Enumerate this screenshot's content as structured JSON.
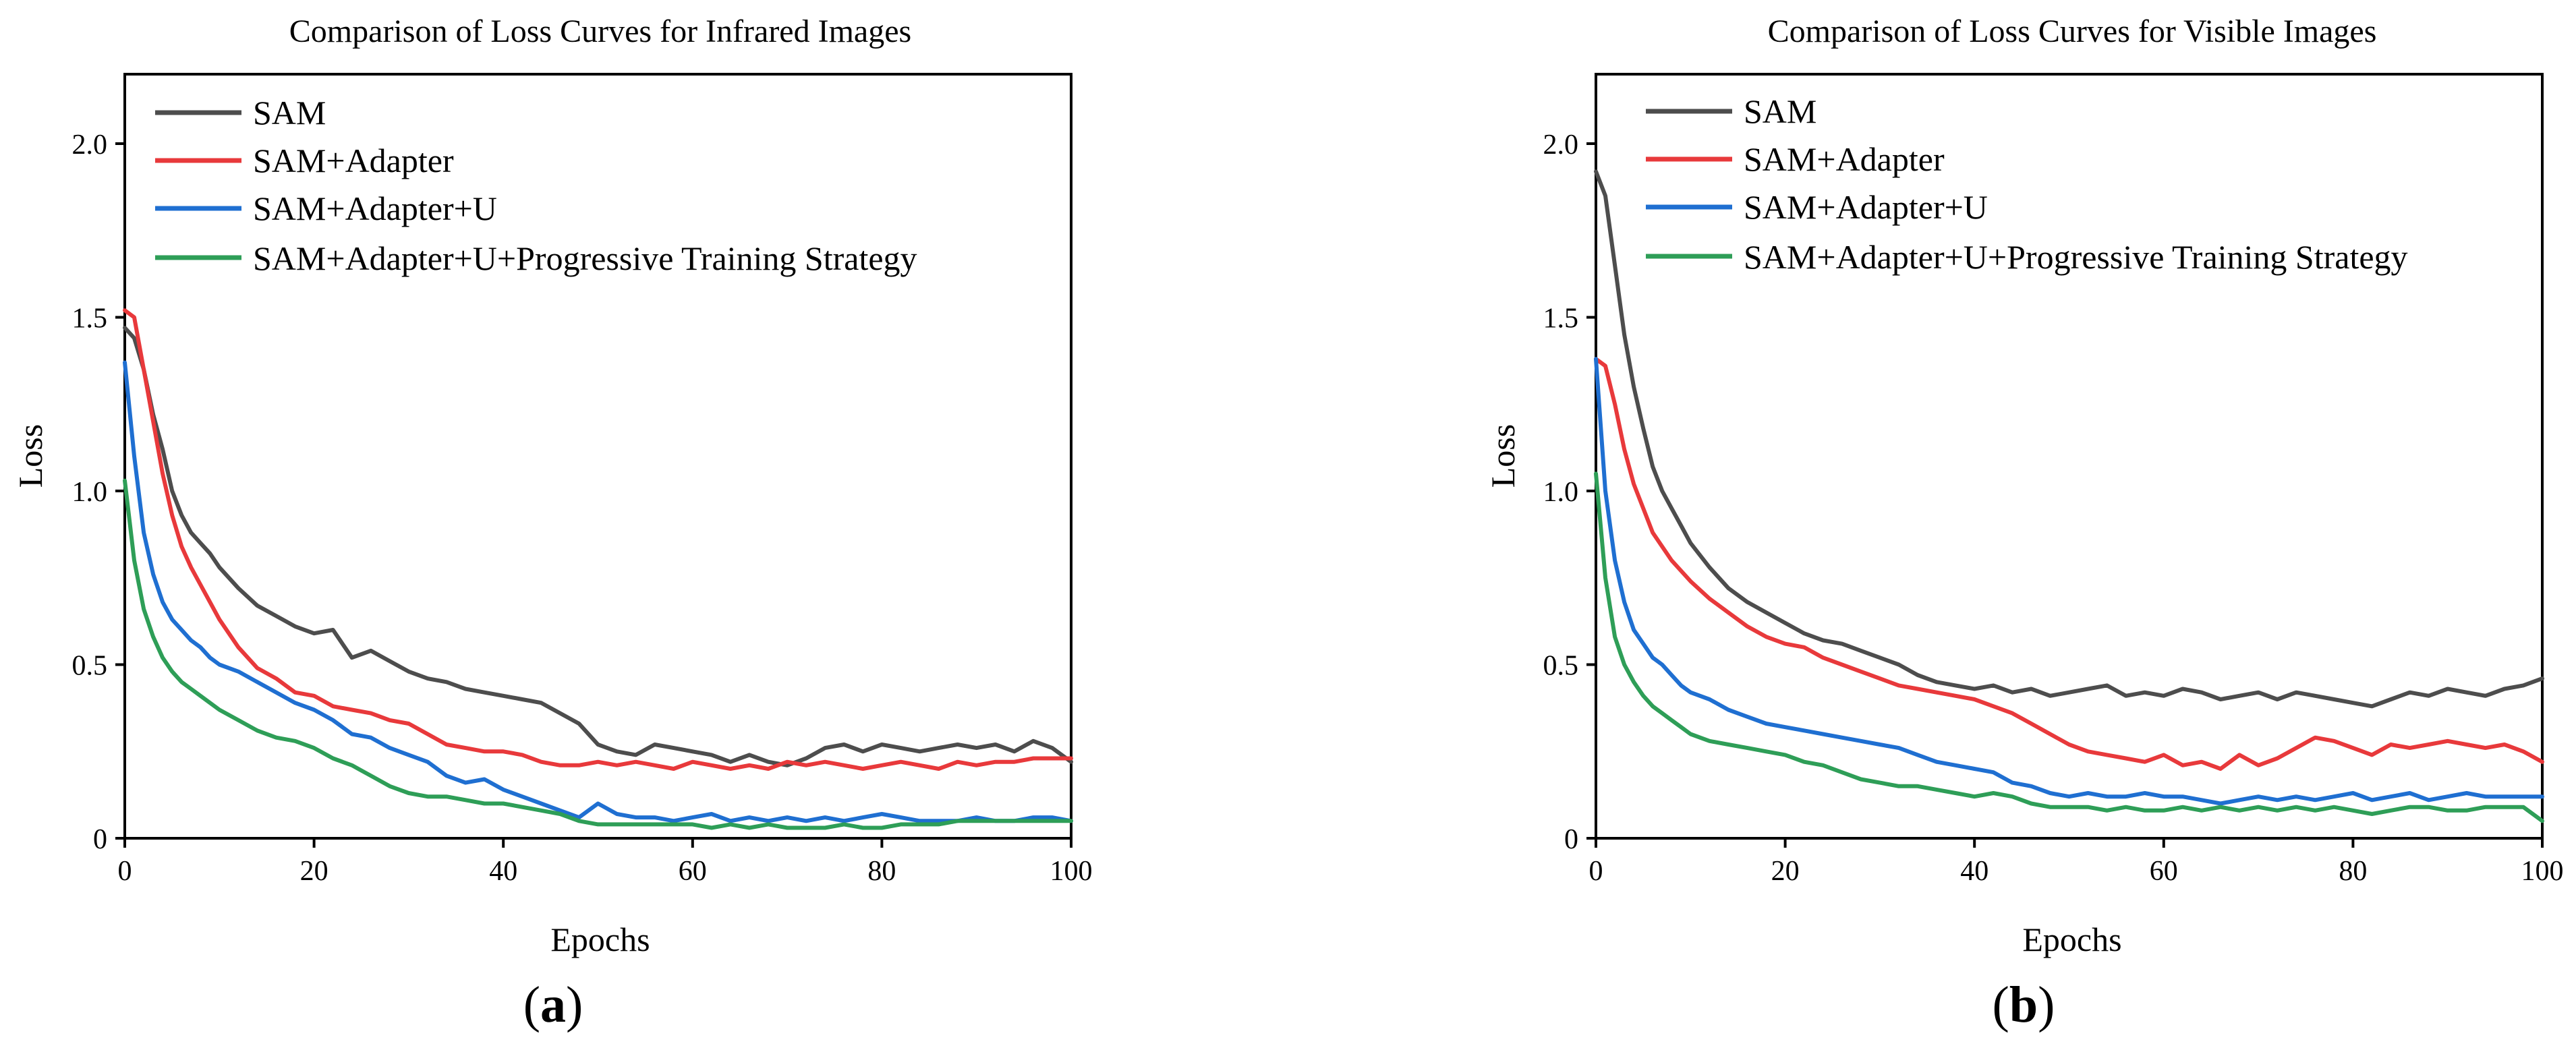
{
  "figure": {
    "panel_labels": [
      {
        "open": "(",
        "letter": "a",
        "close": ")"
      },
      {
        "open": "(",
        "letter": "b",
        "close": ")"
      }
    ]
  },
  "chart_data": [
    {
      "type": "line",
      "title": "Comparison of Loss Curves for Infrared Images",
      "xlabel": "Epochs",
      "ylabel": "Loss",
      "xlim": [
        0,
        100
      ],
      "ylim": [
        0,
        2.2
      ],
      "xticks": [
        0,
        20,
        40,
        60,
        80,
        100
      ],
      "yticks": [
        0,
        0.5,
        1.0,
        1.5,
        2.0
      ],
      "ytick_labels": [
        "0",
        "0.5",
        "1.0",
        "1.5",
        "2.0"
      ],
      "grid": false,
      "legend_position": "top-left",
      "series": [
        {
          "name": "SAM",
          "color": "#4d4d4d",
          "x": [
            0,
            1,
            2,
            3,
            4,
            5,
            6,
            7,
            8,
            9,
            10,
            12,
            14,
            16,
            18,
            20,
            22,
            24,
            26,
            28,
            30,
            32,
            34,
            36,
            38,
            40,
            42,
            44,
            46,
            48,
            50,
            52,
            54,
            56,
            58,
            60,
            62,
            64,
            66,
            68,
            70,
            72,
            74,
            76,
            78,
            80,
            82,
            84,
            86,
            88,
            90,
            92,
            94,
            96,
            98,
            100
          ],
          "y": [
            1.47,
            1.44,
            1.35,
            1.22,
            1.12,
            1.0,
            0.93,
            0.88,
            0.85,
            0.82,
            0.78,
            0.72,
            0.67,
            0.64,
            0.61,
            0.59,
            0.6,
            0.52,
            0.54,
            0.51,
            0.48,
            0.46,
            0.45,
            0.43,
            0.42,
            0.41,
            0.4,
            0.39,
            0.36,
            0.33,
            0.27,
            0.25,
            0.24,
            0.27,
            0.26,
            0.25,
            0.24,
            0.22,
            0.24,
            0.22,
            0.21,
            0.23,
            0.26,
            0.27,
            0.25,
            0.27,
            0.26,
            0.25,
            0.26,
            0.27,
            0.26,
            0.27,
            0.25,
            0.28,
            0.26,
            0.22
          ]
        },
        {
          "name": "SAM+Adapter",
          "color": "#e8393b",
          "x": [
            0,
            1,
            2,
            3,
            4,
            5,
            6,
            7,
            8,
            9,
            10,
            12,
            14,
            16,
            18,
            20,
            22,
            24,
            26,
            28,
            30,
            32,
            34,
            36,
            38,
            40,
            42,
            44,
            46,
            48,
            50,
            52,
            54,
            56,
            58,
            60,
            62,
            64,
            66,
            68,
            70,
            72,
            74,
            76,
            78,
            80,
            82,
            84,
            86,
            88,
            90,
            92,
            94,
            96,
            98,
            100
          ],
          "y": [
            1.52,
            1.5,
            1.35,
            1.2,
            1.05,
            0.93,
            0.84,
            0.78,
            0.73,
            0.68,
            0.63,
            0.55,
            0.49,
            0.46,
            0.42,
            0.41,
            0.38,
            0.37,
            0.36,
            0.34,
            0.33,
            0.3,
            0.27,
            0.26,
            0.25,
            0.25,
            0.24,
            0.22,
            0.21,
            0.21,
            0.22,
            0.21,
            0.22,
            0.21,
            0.2,
            0.22,
            0.21,
            0.2,
            0.21,
            0.2,
            0.22,
            0.21,
            0.22,
            0.21,
            0.2,
            0.21,
            0.22,
            0.21,
            0.2,
            0.22,
            0.21,
            0.22,
            0.22,
            0.23,
            0.23,
            0.23
          ]
        },
        {
          "name": "SAM+Adapter+U",
          "color": "#1f6fd1",
          "x": [
            0,
            1,
            2,
            3,
            4,
            5,
            6,
            7,
            8,
            9,
            10,
            12,
            14,
            16,
            18,
            20,
            22,
            24,
            26,
            28,
            30,
            32,
            34,
            36,
            38,
            40,
            42,
            44,
            46,
            48,
            50,
            52,
            54,
            56,
            58,
            60,
            62,
            64,
            66,
            68,
            70,
            72,
            74,
            76,
            78,
            80,
            82,
            84,
            86,
            88,
            90,
            92,
            94,
            96,
            98,
            100
          ],
          "y": [
            1.37,
            1.1,
            0.88,
            0.76,
            0.68,
            0.63,
            0.6,
            0.57,
            0.55,
            0.52,
            0.5,
            0.48,
            0.45,
            0.42,
            0.39,
            0.37,
            0.34,
            0.3,
            0.29,
            0.26,
            0.24,
            0.22,
            0.18,
            0.16,
            0.17,
            0.14,
            0.12,
            0.1,
            0.08,
            0.06,
            0.1,
            0.07,
            0.06,
            0.06,
            0.05,
            0.06,
            0.07,
            0.05,
            0.06,
            0.05,
            0.06,
            0.05,
            0.06,
            0.05,
            0.06,
            0.07,
            0.06,
            0.05,
            0.05,
            0.05,
            0.06,
            0.05,
            0.05,
            0.06,
            0.06,
            0.05
          ]
        },
        {
          "name": "SAM+Adapter+U+Progressive Training Strategy",
          "color": "#2e9e57",
          "x": [
            0,
            1,
            2,
            3,
            4,
            5,
            6,
            7,
            8,
            9,
            10,
            12,
            14,
            16,
            18,
            20,
            22,
            24,
            26,
            28,
            30,
            32,
            34,
            36,
            38,
            40,
            42,
            44,
            46,
            48,
            50,
            52,
            54,
            56,
            58,
            60,
            62,
            64,
            66,
            68,
            70,
            72,
            74,
            76,
            78,
            80,
            82,
            84,
            86,
            88,
            90,
            92,
            94,
            96,
            98,
            100
          ],
          "y": [
            1.03,
            0.8,
            0.66,
            0.58,
            0.52,
            0.48,
            0.45,
            0.43,
            0.41,
            0.39,
            0.37,
            0.34,
            0.31,
            0.29,
            0.28,
            0.26,
            0.23,
            0.21,
            0.18,
            0.15,
            0.13,
            0.12,
            0.12,
            0.11,
            0.1,
            0.1,
            0.09,
            0.08,
            0.07,
            0.05,
            0.04,
            0.04,
            0.04,
            0.04,
            0.04,
            0.04,
            0.03,
            0.04,
            0.03,
            0.04,
            0.03,
            0.03,
            0.03,
            0.04,
            0.03,
            0.03,
            0.04,
            0.04,
            0.04,
            0.05,
            0.05,
            0.05,
            0.05,
            0.05,
            0.05,
            0.05
          ]
        }
      ]
    },
    {
      "type": "line",
      "title": "Comparison of Loss Curves for Visible Images",
      "xlabel": "Epochs",
      "ylabel": "Loss",
      "xlim": [
        0,
        100
      ],
      "ylim": [
        0,
        2.2
      ],
      "xticks": [
        0,
        20,
        40,
        60,
        80,
        100
      ],
      "yticks": [
        0,
        0.5,
        1.0,
        1.5,
        2.0
      ],
      "ytick_labels": [
        "0",
        "0.5",
        "1.0",
        "1.5",
        "2.0"
      ],
      "grid": false,
      "legend_position": "top-left",
      "series": [
        {
          "name": "SAM",
          "color": "#4d4d4d",
          "x": [
            0,
            1,
            2,
            3,
            4,
            5,
            6,
            7,
            8,
            9,
            10,
            12,
            14,
            16,
            18,
            20,
            22,
            24,
            26,
            28,
            30,
            32,
            34,
            36,
            38,
            40,
            42,
            44,
            46,
            48,
            50,
            52,
            54,
            56,
            58,
            60,
            62,
            64,
            66,
            68,
            70,
            72,
            74,
            76,
            78,
            80,
            82,
            84,
            86,
            88,
            90,
            92,
            94,
            96,
            98,
            100
          ],
          "y": [
            1.92,
            1.85,
            1.65,
            1.45,
            1.3,
            1.18,
            1.07,
            1.0,
            0.95,
            0.9,
            0.85,
            0.78,
            0.72,
            0.68,
            0.65,
            0.62,
            0.59,
            0.57,
            0.56,
            0.54,
            0.52,
            0.5,
            0.47,
            0.45,
            0.44,
            0.43,
            0.44,
            0.42,
            0.43,
            0.41,
            0.42,
            0.43,
            0.44,
            0.41,
            0.42,
            0.41,
            0.43,
            0.42,
            0.4,
            0.41,
            0.42,
            0.4,
            0.42,
            0.41,
            0.4,
            0.39,
            0.38,
            0.4,
            0.42,
            0.41,
            0.43,
            0.42,
            0.41,
            0.43,
            0.44,
            0.46
          ]
        },
        {
          "name": "SAM+Adapter",
          "color": "#e8393b",
          "x": [
            0,
            1,
            2,
            3,
            4,
            5,
            6,
            7,
            8,
            9,
            10,
            12,
            14,
            16,
            18,
            20,
            22,
            24,
            26,
            28,
            30,
            32,
            34,
            36,
            38,
            40,
            42,
            44,
            46,
            48,
            50,
            52,
            54,
            56,
            58,
            60,
            62,
            64,
            66,
            68,
            70,
            72,
            74,
            76,
            78,
            80,
            82,
            84,
            86,
            88,
            90,
            92,
            94,
            96,
            98,
            100
          ],
          "y": [
            1.38,
            1.36,
            1.25,
            1.12,
            1.02,
            0.95,
            0.88,
            0.84,
            0.8,
            0.77,
            0.74,
            0.69,
            0.65,
            0.61,
            0.58,
            0.56,
            0.55,
            0.52,
            0.5,
            0.48,
            0.46,
            0.44,
            0.43,
            0.42,
            0.41,
            0.4,
            0.38,
            0.36,
            0.33,
            0.3,
            0.27,
            0.25,
            0.24,
            0.23,
            0.22,
            0.24,
            0.21,
            0.22,
            0.2,
            0.24,
            0.21,
            0.23,
            0.26,
            0.29,
            0.28,
            0.26,
            0.24,
            0.27,
            0.26,
            0.27,
            0.28,
            0.27,
            0.26,
            0.27,
            0.25,
            0.22
          ]
        },
        {
          "name": "SAM+Adapter+U",
          "color": "#1f6fd1",
          "x": [
            0,
            1,
            2,
            3,
            4,
            5,
            6,
            7,
            8,
            9,
            10,
            12,
            14,
            16,
            18,
            20,
            22,
            24,
            26,
            28,
            30,
            32,
            34,
            36,
            38,
            40,
            42,
            44,
            46,
            48,
            50,
            52,
            54,
            56,
            58,
            60,
            62,
            64,
            66,
            68,
            70,
            72,
            74,
            76,
            78,
            80,
            82,
            84,
            86,
            88,
            90,
            92,
            94,
            96,
            98,
            100
          ],
          "y": [
            1.38,
            1.0,
            0.8,
            0.68,
            0.6,
            0.56,
            0.52,
            0.5,
            0.47,
            0.44,
            0.42,
            0.4,
            0.37,
            0.35,
            0.33,
            0.32,
            0.31,
            0.3,
            0.29,
            0.28,
            0.27,
            0.26,
            0.24,
            0.22,
            0.21,
            0.2,
            0.19,
            0.16,
            0.15,
            0.13,
            0.12,
            0.13,
            0.12,
            0.12,
            0.13,
            0.12,
            0.12,
            0.11,
            0.1,
            0.11,
            0.12,
            0.11,
            0.12,
            0.11,
            0.12,
            0.13,
            0.11,
            0.12,
            0.13,
            0.11,
            0.12,
            0.13,
            0.12,
            0.12,
            0.12,
            0.12
          ]
        },
        {
          "name": "SAM+Adapter+U+Progressive Training Strategy",
          "color": "#2e9e57",
          "x": [
            0,
            1,
            2,
            3,
            4,
            5,
            6,
            7,
            8,
            9,
            10,
            12,
            14,
            16,
            18,
            20,
            22,
            24,
            26,
            28,
            30,
            32,
            34,
            36,
            38,
            40,
            42,
            44,
            46,
            48,
            50,
            52,
            54,
            56,
            58,
            60,
            62,
            64,
            66,
            68,
            70,
            72,
            74,
            76,
            78,
            80,
            82,
            84,
            86,
            88,
            90,
            92,
            94,
            96,
            98,
            100
          ],
          "y": [
            1.05,
            0.75,
            0.58,
            0.5,
            0.45,
            0.41,
            0.38,
            0.36,
            0.34,
            0.32,
            0.3,
            0.28,
            0.27,
            0.26,
            0.25,
            0.24,
            0.22,
            0.21,
            0.19,
            0.17,
            0.16,
            0.15,
            0.15,
            0.14,
            0.13,
            0.12,
            0.13,
            0.12,
            0.1,
            0.09,
            0.09,
            0.09,
            0.08,
            0.09,
            0.08,
            0.08,
            0.09,
            0.08,
            0.09,
            0.08,
            0.09,
            0.08,
            0.09,
            0.08,
            0.09,
            0.08,
            0.07,
            0.08,
            0.09,
            0.09,
            0.08,
            0.08,
            0.09,
            0.09,
            0.09,
            0.05
          ]
        }
      ]
    }
  ]
}
